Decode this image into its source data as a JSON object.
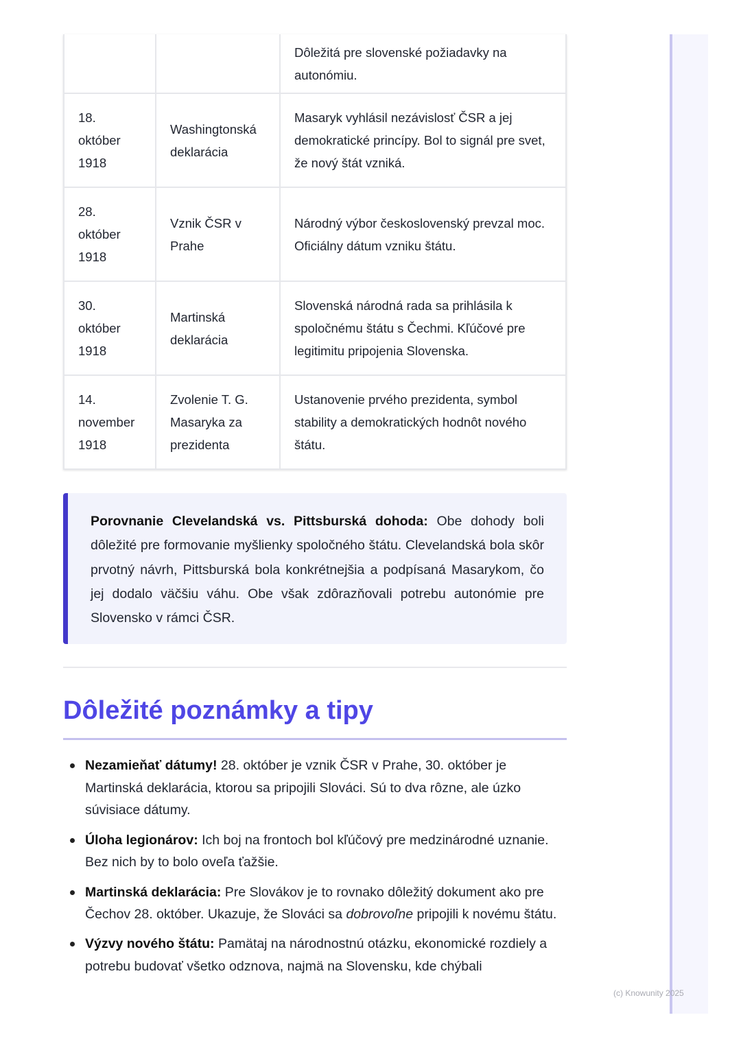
{
  "table": {
    "rows": [
      {
        "date": "",
        "event": "",
        "desc": "Dôležitá pre slovenské požiadavky na autonómiu."
      },
      {
        "date": "18. október 1918",
        "event": "Washingtonská deklarácia",
        "desc": "Masaryk vyhlásil nezávislosť ČSR a jej demokratické princípy. Bol to signál pre svet, že nový štát vzniká."
      },
      {
        "date": "28. október 1918",
        "event": "Vznik ČSR v Prahe",
        "desc": "Národný výbor československý prevzal moc. Oficiálny dátum vzniku štátu."
      },
      {
        "date": "30. október 1918",
        "event": "Martinská deklarácia",
        "desc": "Slovenská národná rada sa prihlásila k spoločnému štátu s Čechmi. Kľúčové pre legitimitu pripojenia Slovenska."
      },
      {
        "date": "14. november 1918",
        "event": "Zvolenie T. G. Masaryka za prezidenta",
        "desc": "Ustanovenie prvého prezidenta, symbol stability a demokratických hodnôt nového štátu."
      }
    ]
  },
  "callout": {
    "bold": "Porovnanie Clevelandská vs. Pittsburská dohoda:",
    "text": " Obe dohody boli dôležité pre formovanie myšlienky spoločného štátu. Clevelandská bola skôr prvotný návrh, Pittsburská bola konkrétnejšia a podpísaná Masarykom, čo jej dodalo väčšiu váhu. Obe však zdôrazňovali potrebu autonómie pre Slovensko v rámci ČSR."
  },
  "section": {
    "title": "Dôležité poznámky a tipy"
  },
  "tips": [
    {
      "bold": "Nezamieňať dátumy!",
      "text": " 28. október je vznik ČSR v Prahe, 30. október je Martinská deklarácia, ktorou sa pripojili Slováci. Sú to dva rôzne, ale úzko súvisiace dátumy.",
      "italic": "",
      "after": ""
    },
    {
      "bold": "Úloha legionárov:",
      "text": " Ich boj na frontoch bol kľúčový pre medzinárodné uznanie. Bez nich by to bolo oveľa ťažšie.",
      "italic": "",
      "after": ""
    },
    {
      "bold": "Martinská deklarácia:",
      "text": " Pre Slovákov je to rovnako dôležitý dokument ako pre Čechov 28. október. Ukazuje, že Slováci sa ",
      "italic": "dobrovoľne",
      "after": " pripojili k novému štátu."
    },
    {
      "bold": "Výzvy nového štátu:",
      "text": " Pamätaj na národnostnú otázku, ekonomické rozdiely a potrebu budovať všetko odznova, najmä na Slovensku, kde chýbali",
      "italic": "",
      "after": ""
    }
  ],
  "footer": {
    "copyright": "(c) Knowunity 2025"
  },
  "colors": {
    "accent": "#4f46e5",
    "callout_border": "#4338ca",
    "callout_bg": "#f2f3fc"
  }
}
